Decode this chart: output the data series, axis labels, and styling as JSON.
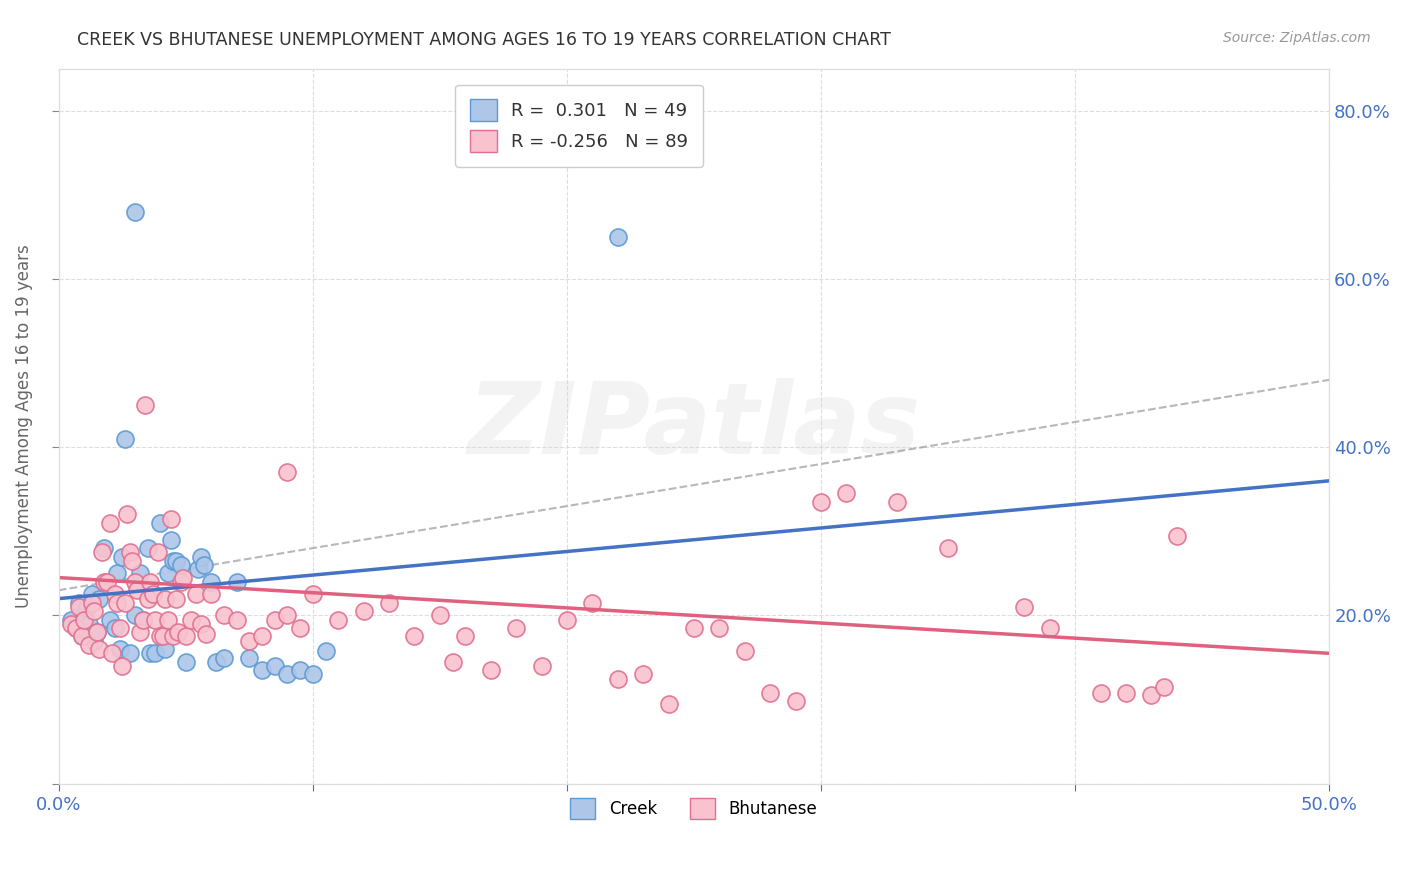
{
  "title": "CREEK VS BHUTANESE UNEMPLOYMENT AMONG AGES 16 TO 19 YEARS CORRELATION CHART",
  "source": "Source: ZipAtlas.com",
  "ylabel": "Unemployment Among Ages 16 to 19 years",
  "xlim": [
    0.0,
    0.5
  ],
  "ylim": [
    0.0,
    0.85
  ],
  "xtick_positions": [
    0.0,
    0.1,
    0.2,
    0.3,
    0.4,
    0.5
  ],
  "xtick_labels": [
    "0.0%",
    "",
    "",
    "",
    "",
    "50.0%"
  ],
  "yticks_right": [
    0.2,
    0.4,
    0.6,
    0.8
  ],
  "creek_color": "#aec6e8",
  "creek_edge_color": "#5b9bd5",
  "creek_line_color": "#4472c4",
  "bhutanese_color": "#f9c2cf",
  "bhutanese_edge_color": "#e07090",
  "bhutanese_line_color": "#e06080",
  "dashed_line_color": "#999999",
  "creek_R": 0.301,
  "creek_N": 49,
  "bhutanese_R": -0.256,
  "bhutanese_N": 89,
  "watermark_text": "ZIPatlas",
  "background_color": "#ffffff",
  "grid_color": "#dddddd",
  "creek_scatter": [
    [
      0.005,
      0.195
    ],
    [
      0.007,
      0.185
    ],
    [
      0.008,
      0.215
    ],
    [
      0.009,
      0.175
    ],
    [
      0.01,
      0.2
    ],
    [
      0.011,
      0.21
    ],
    [
      0.012,
      0.19
    ],
    [
      0.013,
      0.225
    ],
    [
      0.014,
      0.17
    ],
    [
      0.015,
      0.18
    ],
    [
      0.016,
      0.22
    ],
    [
      0.018,
      0.28
    ],
    [
      0.02,
      0.195
    ],
    [
      0.022,
      0.185
    ],
    [
      0.023,
      0.25
    ],
    [
      0.024,
      0.16
    ],
    [
      0.025,
      0.27
    ],
    [
      0.026,
      0.41
    ],
    [
      0.028,
      0.155
    ],
    [
      0.03,
      0.2
    ],
    [
      0.03,
      0.68
    ],
    [
      0.032,
      0.25
    ],
    [
      0.033,
      0.195
    ],
    [
      0.035,
      0.28
    ],
    [
      0.036,
      0.155
    ],
    [
      0.038,
      0.155
    ],
    [
      0.04,
      0.31
    ],
    [
      0.042,
      0.16
    ],
    [
      0.043,
      0.25
    ],
    [
      0.044,
      0.29
    ],
    [
      0.045,
      0.265
    ],
    [
      0.046,
      0.265
    ],
    [
      0.048,
      0.26
    ],
    [
      0.05,
      0.145
    ],
    [
      0.055,
      0.255
    ],
    [
      0.056,
      0.27
    ],
    [
      0.057,
      0.26
    ],
    [
      0.06,
      0.24
    ],
    [
      0.062,
      0.145
    ],
    [
      0.065,
      0.15
    ],
    [
      0.07,
      0.24
    ],
    [
      0.075,
      0.15
    ],
    [
      0.08,
      0.135
    ],
    [
      0.085,
      0.14
    ],
    [
      0.09,
      0.13
    ],
    [
      0.095,
      0.135
    ],
    [
      0.1,
      0.13
    ],
    [
      0.105,
      0.158
    ],
    [
      0.22,
      0.65
    ]
  ],
  "bhutanese_scatter": [
    [
      0.005,
      0.19
    ],
    [
      0.007,
      0.185
    ],
    [
      0.008,
      0.21
    ],
    [
      0.009,
      0.175
    ],
    [
      0.01,
      0.195
    ],
    [
      0.012,
      0.165
    ],
    [
      0.013,
      0.215
    ],
    [
      0.014,
      0.205
    ],
    [
      0.015,
      0.18
    ],
    [
      0.016,
      0.16
    ],
    [
      0.017,
      0.275
    ],
    [
      0.018,
      0.24
    ],
    [
      0.019,
      0.24
    ],
    [
      0.02,
      0.31
    ],
    [
      0.021,
      0.155
    ],
    [
      0.022,
      0.225
    ],
    [
      0.023,
      0.215
    ],
    [
      0.024,
      0.185
    ],
    [
      0.025,
      0.14
    ],
    [
      0.026,
      0.215
    ],
    [
      0.027,
      0.32
    ],
    [
      0.028,
      0.275
    ],
    [
      0.029,
      0.265
    ],
    [
      0.03,
      0.24
    ],
    [
      0.031,
      0.23
    ],
    [
      0.032,
      0.18
    ],
    [
      0.033,
      0.195
    ],
    [
      0.034,
      0.45
    ],
    [
      0.035,
      0.22
    ],
    [
      0.036,
      0.24
    ],
    [
      0.037,
      0.225
    ],
    [
      0.038,
      0.195
    ],
    [
      0.039,
      0.275
    ],
    [
      0.04,
      0.175
    ],
    [
      0.041,
      0.175
    ],
    [
      0.042,
      0.22
    ],
    [
      0.043,
      0.195
    ],
    [
      0.044,
      0.315
    ],
    [
      0.045,
      0.175
    ],
    [
      0.046,
      0.22
    ],
    [
      0.047,
      0.18
    ],
    [
      0.048,
      0.24
    ],
    [
      0.049,
      0.245
    ],
    [
      0.05,
      0.175
    ],
    [
      0.052,
      0.195
    ],
    [
      0.054,
      0.225
    ],
    [
      0.056,
      0.19
    ],
    [
      0.058,
      0.178
    ],
    [
      0.06,
      0.225
    ],
    [
      0.065,
      0.2
    ],
    [
      0.07,
      0.195
    ],
    [
      0.075,
      0.17
    ],
    [
      0.08,
      0.175
    ],
    [
      0.085,
      0.195
    ],
    [
      0.09,
      0.2
    ],
    [
      0.095,
      0.185
    ],
    [
      0.1,
      0.225
    ],
    [
      0.11,
      0.195
    ],
    [
      0.12,
      0.205
    ],
    [
      0.13,
      0.215
    ],
    [
      0.14,
      0.175
    ],
    [
      0.15,
      0.2
    ],
    [
      0.155,
      0.145
    ],
    [
      0.16,
      0.175
    ],
    [
      0.17,
      0.135
    ],
    [
      0.18,
      0.185
    ],
    [
      0.19,
      0.14
    ],
    [
      0.2,
      0.195
    ],
    [
      0.21,
      0.215
    ],
    [
      0.22,
      0.125
    ],
    [
      0.23,
      0.13
    ],
    [
      0.24,
      0.095
    ],
    [
      0.25,
      0.185
    ],
    [
      0.26,
      0.185
    ],
    [
      0.27,
      0.158
    ],
    [
      0.28,
      0.108
    ],
    [
      0.29,
      0.098
    ],
    [
      0.3,
      0.335
    ],
    [
      0.31,
      0.345
    ],
    [
      0.33,
      0.335
    ],
    [
      0.35,
      0.28
    ],
    [
      0.38,
      0.21
    ],
    [
      0.39,
      0.185
    ],
    [
      0.41,
      0.108
    ],
    [
      0.42,
      0.108
    ],
    [
      0.43,
      0.105
    ],
    [
      0.435,
      0.115
    ],
    [
      0.44,
      0.295
    ],
    [
      0.09,
      0.37
    ]
  ],
  "creek_line_x": [
    0.0,
    0.5
  ],
  "creek_line_y": [
    0.22,
    0.36
  ],
  "bhutanese_line_x": [
    0.0,
    0.5
  ],
  "bhutanese_line_y": [
    0.245,
    0.155
  ],
  "dashed_line_x": [
    0.0,
    0.5
  ],
  "dashed_line_y": [
    0.23,
    0.48
  ]
}
